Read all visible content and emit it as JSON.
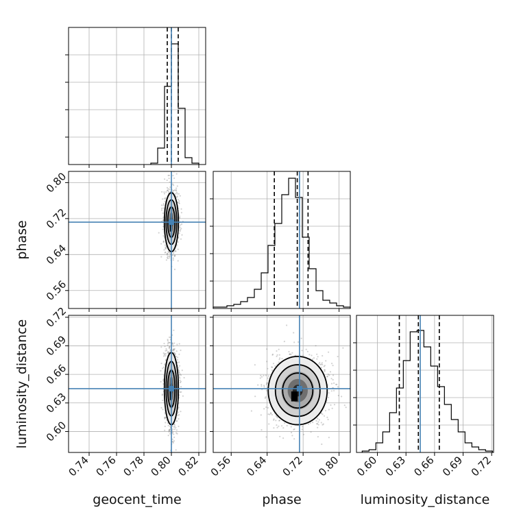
{
  "chart_data": {
    "type": "corner",
    "parameters": [
      "geocent_time",
      "phase",
      "luminosity_distance"
    ],
    "truths": {
      "geocent_time": 0.8,
      "phase": 0.712,
      "luminosity_distance": 0.645
    },
    "ranges": {
      "geocent_time": [
        0.725,
        0.825
      ],
      "phase": [
        0.52,
        0.825
      ],
      "luminosity_distance": [
        0.578,
        0.722
      ]
    },
    "ticks": {
      "geocent_time": [
        "0.74",
        "0.76",
        "0.78",
        "0.80",
        "0.82"
      ],
      "phase": [
        "0.56",
        "0.64",
        "0.72",
        "0.80"
      ],
      "luminosity_distance": [
        "0.60",
        "0.63",
        "0.66",
        "0.69",
        "0.72"
      ]
    },
    "quantiles": {
      "geocent_time": [
        0.797,
        0.8,
        0.805
      ],
      "phase": [
        0.656,
        0.707,
        0.731
      ],
      "luminosity_distance": [
        0.623,
        0.643,
        0.665
      ]
    },
    "histograms": {
      "geocent_time": {
        "edges": [
          0.785,
          0.79,
          0.795,
          0.8,
          0.805,
          0.81,
          0.815,
          0.82
        ],
        "counts": [
          0.01,
          0.12,
          0.57,
          0.88,
          0.41,
          0.05,
          0.01
        ]
      },
      "phase": {
        "edges": [
          0.52,
          0.5352,
          0.5505,
          0.5658,
          0.581,
          0.5962,
          0.6115,
          0.6268,
          0.642,
          0.6572,
          0.6725,
          0.6878,
          0.703,
          0.7182,
          0.7335,
          0.7488,
          0.764,
          0.7792,
          0.7945,
          0.8098,
          0.825
        ],
        "counts": [
          0.01,
          0.01,
          0.02,
          0.03,
          0.05,
          0.08,
          0.14,
          0.26,
          0.46,
          0.62,
          0.83,
          0.95,
          0.81,
          0.52,
          0.29,
          0.13,
          0.06,
          0.04,
          0.02,
          0.01
        ]
      },
      "luminosity_distance": {
        "edges": [
          0.584,
          0.5912,
          0.5984,
          0.6056,
          0.6128,
          0.62,
          0.6272,
          0.6344,
          0.6416,
          0.6488,
          0.656,
          0.6632,
          0.6704,
          0.6776,
          0.6848,
          0.692,
          0.6992,
          0.7064,
          0.7136,
          0.7208
        ],
        "counts": [
          0.01,
          0.02,
          0.07,
          0.15,
          0.29,
          0.47,
          0.67,
          0.88,
          0.89,
          0.77,
          0.63,
          0.48,
          0.35,
          0.24,
          0.15,
          0.07,
          0.04,
          0.02,
          0.01
        ]
      }
    },
    "posterior_2d": {
      "phase_vs_geocent_time": {
        "center": [
          0.8,
          0.712
        ],
        "sigma": [
          0.0025,
          0.032
        ],
        "contour_levels": 3
      },
      "luminosity_distance_vs_geocent_time": {
        "center": [
          0.8,
          0.645
        ],
        "sigma": [
          0.0025,
          0.0185
        ],
        "contour_levels": 3
      },
      "luminosity_distance_vs_phase": {
        "center": [
          0.708,
          0.643
        ],
        "sigma": [
          0.032,
          0.0175
        ],
        "contour_levels": 3
      }
    },
    "grid": true,
    "colors": {
      "truth": "#4682b4",
      "hist": "#000000",
      "points": "#7f7f7f",
      "grid": "#b0b0b0"
    }
  }
}
